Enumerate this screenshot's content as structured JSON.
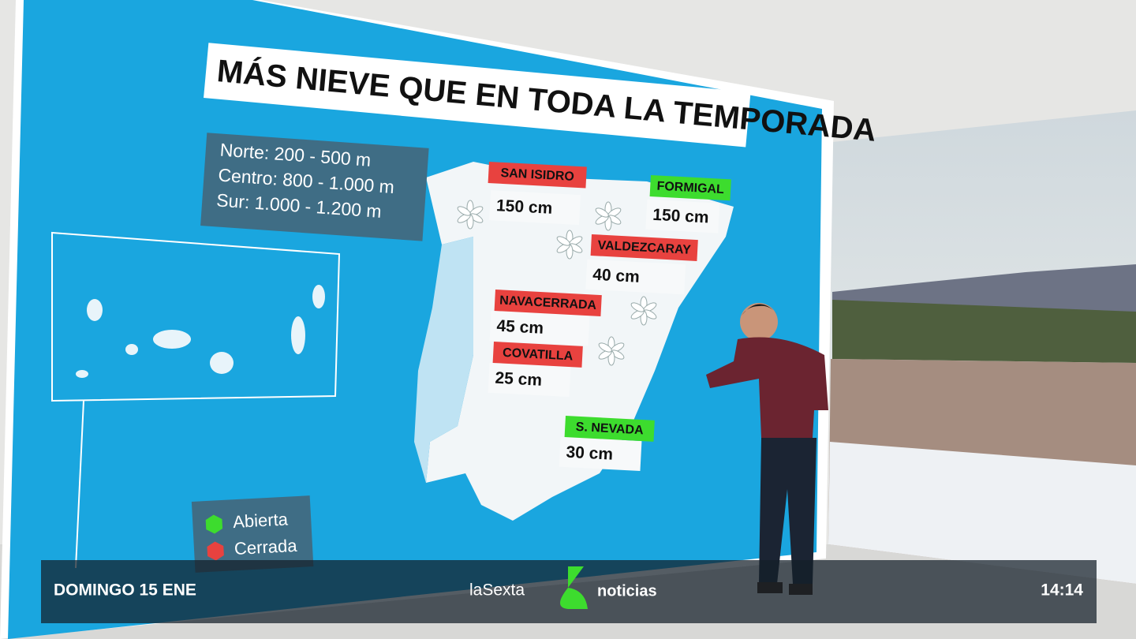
{
  "title": "MÁS NIEVE QUE EN TODA LA TEMPORADA",
  "altitudes": [
    "Norte: 200 - 500 m",
    "Centro: 800 - 1.000 m",
    "Sur: 1.000 - 1.200 m"
  ],
  "stations": [
    {
      "name": "SAN ISIDRO",
      "color": "#e8423f",
      "snow": "150 cm"
    },
    {
      "name": "FORMIGAL",
      "color": "#3ddc2e",
      "snow": "150 cm"
    },
    {
      "name": "VALDEZCARAY",
      "color": "#e8423f",
      "snow": "40 cm"
    },
    {
      "name": "NAVACERRADA",
      "color": "#e8423f",
      "snow": "45 cm"
    },
    {
      "name": "COVATILLA",
      "color": "#e8423f",
      "snow": "25 cm"
    },
    {
      "name": "S. NEVADA",
      "color": "#3ddc2e",
      "snow": "30 cm"
    }
  ],
  "legend": [
    {
      "label": "Abierta",
      "color": "#3ddc2e"
    },
    {
      "label": "Cerrada",
      "color": "#e8423f"
    }
  ],
  "ticker": {
    "date": "DOMINGO 15 ENE",
    "channel": "laSexta",
    "program": "noticias",
    "time": "14:14"
  }
}
